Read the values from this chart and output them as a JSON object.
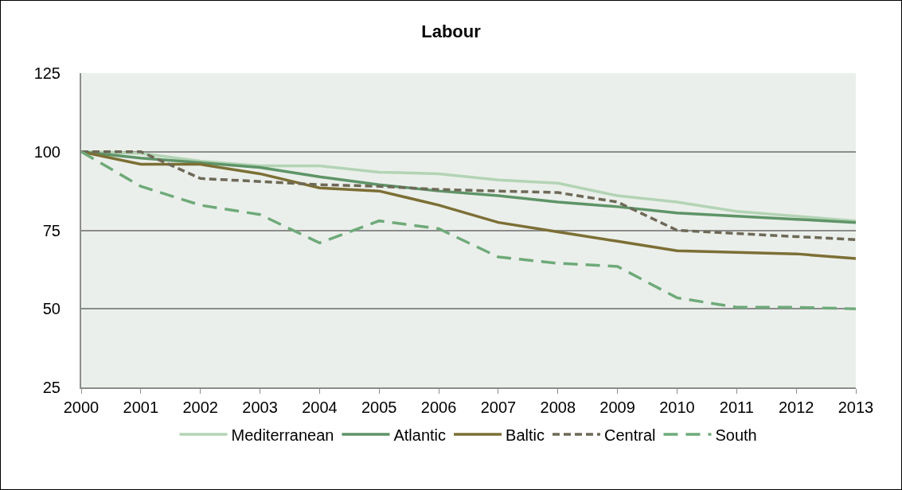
{
  "chart_data": {
    "type": "line",
    "title": "Labour",
    "x": [
      2000,
      2001,
      2002,
      2003,
      2004,
      2005,
      2006,
      2007,
      2008,
      2009,
      2010,
      2011,
      2012,
      2013
    ],
    "xlim": [
      2000,
      2013
    ],
    "xticks": [
      2000,
      2001,
      2002,
      2003,
      2004,
      2005,
      2006,
      2007,
      2008,
      2009,
      2010,
      2011,
      2012,
      2013
    ],
    "ylim": [
      25,
      125
    ],
    "yticks": [
      25,
      50,
      75,
      100,
      125
    ],
    "grid": "y",
    "legend": "bottom",
    "marker": "none",
    "series": [
      {
        "name": "Mediterranean",
        "color": "#b3d4b5",
        "line_style": "solid",
        "values": [
          100,
          99.5,
          97,
          95.5,
          95.5,
          93.5,
          93,
          91,
          90,
          86,
          84,
          81,
          79.5,
          78
        ]
      },
      {
        "name": "Atlantic",
        "color": "#5e9467",
        "line_style": "solid",
        "values": [
          100,
          98,
          96.5,
          95,
          92,
          89.5,
          87.5,
          86,
          84,
          82.5,
          80.5,
          79.5,
          78.5,
          77.5
        ]
      },
      {
        "name": "Baltic",
        "color": "#7c6f35",
        "line_style": "solid",
        "values": [
          100,
          96,
          96,
          93,
          88.5,
          87.5,
          83,
          77.5,
          74.5,
          71.5,
          68.5,
          68,
          67.5,
          66
        ]
      },
      {
        "name": "Central",
        "color": "#6e6957",
        "line_style": "dotted",
        "values": [
          100,
          100,
          91.5,
          90.5,
          89.5,
          89,
          88,
          87.5,
          87,
          84,
          75,
          74,
          73,
          72
        ]
      },
      {
        "name": "South",
        "color": "#6eaa79",
        "line_style": "dashed",
        "values": [
          100,
          89,
          83,
          80,
          71,
          78,
          75.5,
          66.5,
          64.5,
          63.5,
          53.5,
          50.5,
          50.5,
          50
        ]
      }
    ]
  }
}
